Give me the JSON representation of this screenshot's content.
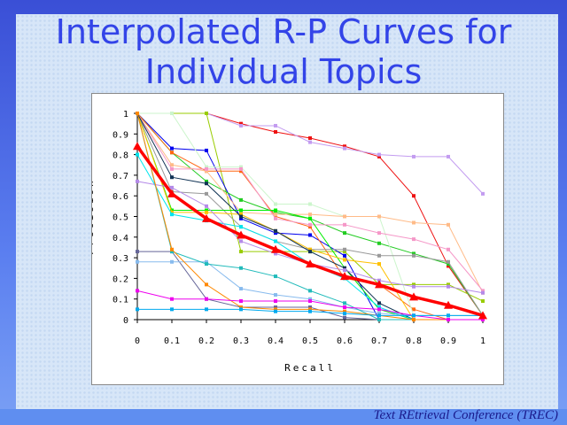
{
  "slide": {
    "title_line1": "Interpolated R-P Curves for",
    "title_line2": "Individual Topics",
    "footer": "Text REtrieval Conference (TREC)"
  },
  "chart_data": {
    "type": "line",
    "title": "Interpolated R-P Curves for Individual Topics",
    "xlabel": "Recall",
    "ylabel": "Precision",
    "x": [
      0,
      0.1,
      0.2,
      0.3,
      0.4,
      0.5,
      0.6,
      0.7,
      0.8,
      0.9,
      1
    ],
    "x_ticks": [
      "0",
      "0.1",
      "0.2",
      "0.3",
      "0.4",
      "0.5",
      "0.6",
      "0.7",
      "0.8",
      "0.9",
      "1"
    ],
    "y_ticks": [
      "0",
      "0.1",
      "0.2",
      "0.3",
      "0.4",
      "0.5",
      "0.6",
      "0.7",
      "0.8",
      "0.9",
      "1"
    ],
    "xlim": [
      0,
      1
    ],
    "ylim": [
      0,
      1
    ],
    "grid": false,
    "average": {
      "name": "Average",
      "color": "#ff0000",
      "values": [
        0.84,
        0.61,
        0.49,
        0.41,
        0.34,
        0.27,
        0.21,
        0.17,
        0.11,
        0.07,
        0.02
      ]
    },
    "series": [
      {
        "color": "#ee1111",
        "values": [
          1,
          1,
          1,
          0.95,
          0.91,
          0.88,
          0.84,
          0.79,
          0.6,
          0.26,
          0.02
        ]
      },
      {
        "color": "#c39cf0",
        "values": [
          1,
          1,
          1,
          0.94,
          0.94,
          0.86,
          0.83,
          0.8,
          0.79,
          0.79,
          0.61
        ]
      },
      {
        "color": "#99cc00",
        "values": [
          1,
          1,
          1,
          0.33,
          0.33,
          0.33,
          0.33,
          0.17,
          0.17,
          0.17,
          0.09
        ]
      },
      {
        "color": "#0000ee",
        "values": [
          1,
          0.83,
          0.82,
          0.49,
          0.42,
          0.41,
          0.31,
          0,
          0,
          0,
          0
        ]
      },
      {
        "color": "#22cc22",
        "values": [
          1,
          0.81,
          0.67,
          0.58,
          0.52,
          0.49,
          0.42,
          0.37,
          0.32,
          0.27,
          0.02
        ]
      },
      {
        "color": "#ff6611",
        "values": [
          1,
          0.81,
          0.72,
          0.72,
          0.5,
          0.45,
          0.2,
          0.17,
          0.05,
          0,
          0
        ]
      },
      {
        "color": "#ccf5cc",
        "values": [
          1,
          1,
          0.74,
          0.74,
          0.56,
          0.56,
          0.5,
          0.5,
          0.02,
          0.02,
          0.02
        ]
      },
      {
        "color": "#ffbb88",
        "values": [
          1,
          0.75,
          0.72,
          0.52,
          0.51,
          0.51,
          0.5,
          0.5,
          0.47,
          0.46,
          0.13
        ]
      },
      {
        "color": "#f598c8",
        "values": [
          1,
          0.73,
          0.73,
          0.73,
          0.49,
          0.46,
          0.46,
          0.42,
          0.39,
          0.34,
          0.14
        ]
      },
      {
        "color": "#999999",
        "values": [
          1,
          0.62,
          0.61,
          0.45,
          0.38,
          0.34,
          0.34,
          0.31,
          0.31,
          0.28,
          0.02
        ]
      },
      {
        "color": "#00ee00",
        "values": [
          1,
          0.53,
          0.53,
          0.53,
          0.53,
          0.49,
          0.25,
          0.05,
          0,
          0,
          0
        ]
      },
      {
        "color": "#ffc000",
        "values": [
          1,
          0.52,
          0.52,
          0.51,
          0.43,
          0.34,
          0.29,
          0.27,
          0,
          0,
          0
        ]
      },
      {
        "color": "#113355",
        "values": [
          1,
          0.69,
          0.66,
          0.5,
          0.43,
          0.33,
          0.25,
          0.08,
          0,
          0,
          0
        ]
      },
      {
        "color": "#00e5ee",
        "values": [
          0.8,
          0.51,
          0.48,
          0.45,
          0.38,
          0.27,
          0.2,
          0.06,
          0,
          0,
          0
        ]
      },
      {
        "color": "#b48ae8",
        "values": [
          0.67,
          0.64,
          0.55,
          0.38,
          0.32,
          0.27,
          0.24,
          0.19,
          0.16,
          0.16,
          0.13
        ]
      },
      {
        "color": "#666699",
        "values": [
          0.33,
          0.33,
          0.1,
          0.06,
          0.06,
          0.06,
          0.01,
          0,
          0,
          0,
          0
        ]
      },
      {
        "color": "#88bbee",
        "values": [
          0.28,
          0.28,
          0.28,
          0.15,
          0.12,
          0.1,
          0.06,
          0.03,
          0.02,
          0.02,
          0.02
        ]
      },
      {
        "color": "#22bbbb",
        "values": [
          1,
          0.33,
          0.27,
          0.25,
          0.21,
          0.14,
          0.08,
          0,
          0,
          0,
          0
        ]
      },
      {
        "color": "#ff8800",
        "values": [
          1,
          0.34,
          0.17,
          0.06,
          0.05,
          0.05,
          0.04,
          0.02,
          0,
          0,
          0
        ]
      },
      {
        "color": "#ee00ee",
        "values": [
          0.14,
          0.1,
          0.1,
          0.09,
          0.09,
          0.09,
          0.06,
          0.05,
          0.02,
          0,
          0
        ]
      },
      {
        "color": "#00aaee",
        "values": [
          0.05,
          0.05,
          0.05,
          0.05,
          0.04,
          0.04,
          0.03,
          0.02,
          0.02,
          0.02,
          0.02
        ]
      }
    ]
  }
}
